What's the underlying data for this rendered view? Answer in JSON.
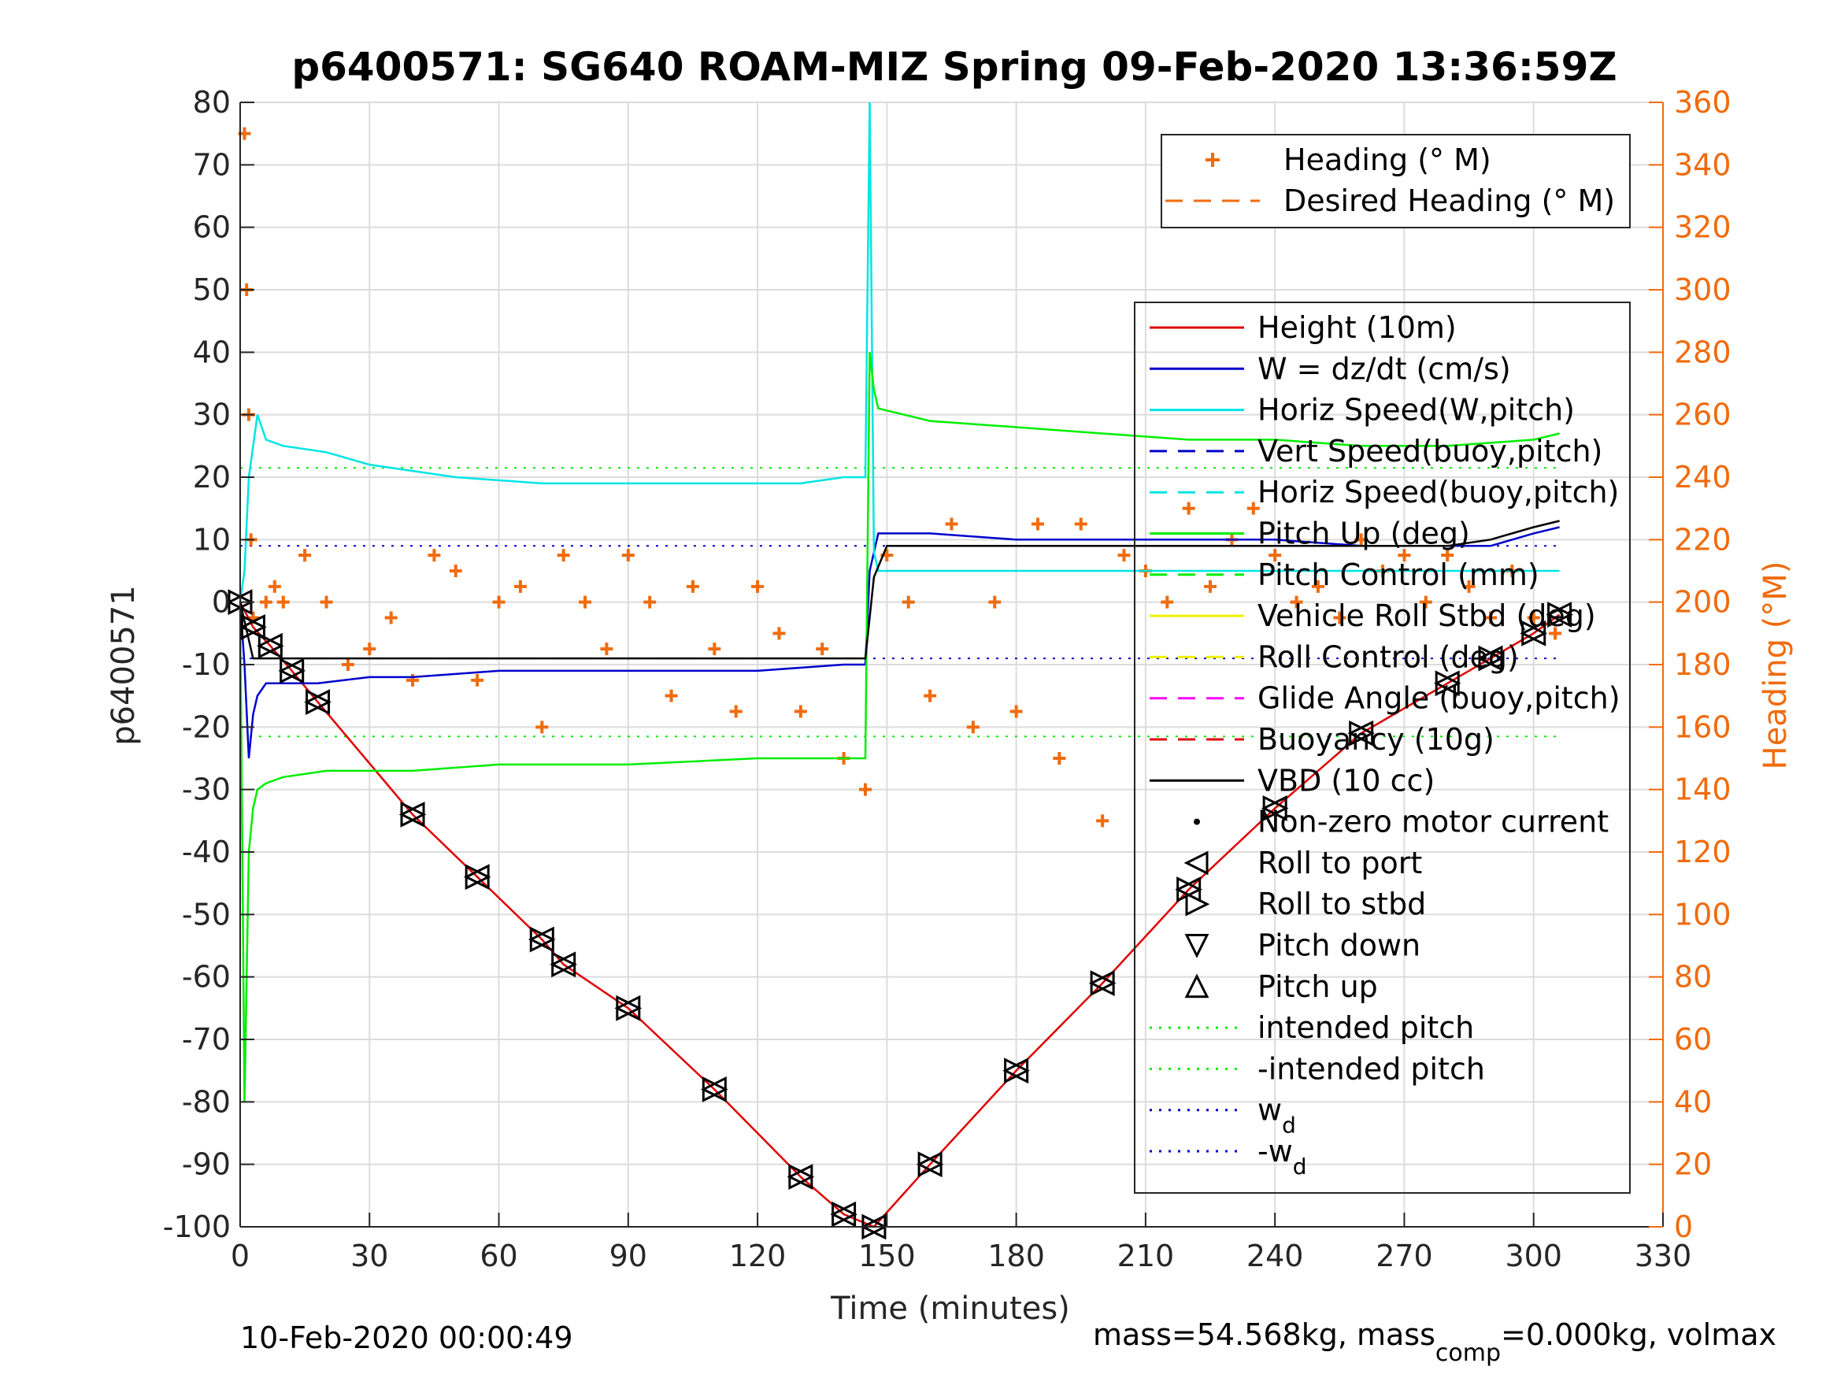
{
  "chart_data": {
    "type": "line",
    "title": "p6400571: SG640 ROAM-MIZ Spring 09-Feb-2020 13:36:59Z",
    "xlabel": "Time (minutes)",
    "ylabel": "p6400571",
    "ylabel_right": "Heading (°M)",
    "xlim": [
      0,
      330
    ],
    "ylim": [
      -100,
      80
    ],
    "ylim_right": [
      0,
      360
    ],
    "xticks": [
      0,
      30,
      60,
      90,
      120,
      150,
      180,
      210,
      240,
      270,
      300,
      330
    ],
    "yticks": [
      -100,
      -90,
      -80,
      -70,
      -60,
      -50,
      -40,
      -30,
      -20,
      -10,
      0,
      10,
      20,
      30,
      40,
      50,
      60,
      70,
      80
    ],
    "yticks_right": [
      0,
      20,
      40,
      60,
      80,
      100,
      120,
      140,
      160,
      180,
      200,
      220,
      240,
      260,
      280,
      300,
      320,
      340,
      360
    ],
    "grid": true,
    "legend_top": {
      "placement": "top-right",
      "entries": [
        {
          "label": "Heading (° M)",
          "color": "#f06b0d",
          "style": "plus"
        },
        {
          "label": "Desired Heading (° M)",
          "color": "#f06b0d",
          "style": "dashed"
        }
      ]
    },
    "legend_main": {
      "placement": "right",
      "entries": [
        {
          "label": "Height (10m)",
          "color": "#e00000",
          "style": "solid"
        },
        {
          "label": "W = dz/dt (cm/s)",
          "color": "#0000cc",
          "style": "solid"
        },
        {
          "label": "Horiz Speed(W,pitch)",
          "color": "#00e5e5",
          "style": "solid"
        },
        {
          "label": "Vert Speed(buoy,pitch)",
          "color": "#0000cc",
          "style": "dashed"
        },
        {
          "label": "Horiz Speed(buoy,pitch)",
          "color": "#00e5e5",
          "style": "dashed"
        },
        {
          "label": "Pitch Up (deg)",
          "color": "#00ee00",
          "style": "solid"
        },
        {
          "label": "Pitch Control (mm)",
          "color": "#00ee00",
          "style": "dashed"
        },
        {
          "label": "Vehicle Roll Stbd (deg)",
          "color": "#f0f000",
          "style": "solid"
        },
        {
          "label": "Roll Control (deg)",
          "color": "#f0f000",
          "style": "dashed"
        },
        {
          "label": "Glide Angle (buoy,pitch)",
          "color": "#ff00ff",
          "style": "dashed"
        },
        {
          "label": "Buoyancy (10g)",
          "color": "#e00000",
          "style": "dashed"
        },
        {
          "label": "VBD (10 cc)",
          "color": "#000000",
          "style": "solid"
        },
        {
          "label": "Non-zero motor current",
          "color": "#000000",
          "style": "dot"
        },
        {
          "label": "Roll to port",
          "color": "#000000",
          "style": "tri-left"
        },
        {
          "label": "Roll to stbd",
          "color": "#000000",
          "style": "tri-right"
        },
        {
          "label": "Pitch down",
          "color": "#000000",
          "style": "tri-down"
        },
        {
          "label": "Pitch up",
          "color": "#000000",
          "style": "tri-up"
        },
        {
          "label": "intended pitch",
          "color": "#00ee00",
          "style": "dotted"
        },
        {
          "label": "-intended pitch",
          "color": "#00ee00",
          "style": "dotted"
        },
        {
          "label": "w",
          "sub": "d",
          "color": "#0000cc",
          "style": "dotted"
        },
        {
          "label": "-w",
          "sub": "d",
          "color": "#0000cc",
          "style": "dotted"
        }
      ]
    },
    "series": [
      {
        "name": "Height (10m)",
        "color": "#e00000",
        "x": [
          0,
          3,
          7,
          12,
          18,
          40,
          55,
          70,
          75,
          90,
          110,
          130,
          140,
          147,
          160,
          180,
          200,
          220,
          240,
          260,
          280,
          290,
          300,
          306
        ],
        "y": [
          0,
          -4,
          -7,
          -11,
          -16,
          -34,
          -44,
          -54,
          -58,
          -65,
          -78,
          -92,
          -98,
          -100,
          -90,
          -75,
          -61,
          -46,
          -33,
          -21,
          -13,
          -9,
          -5,
          -2
        ]
      },
      {
        "name": "W = dz/dt (cm/s)",
        "color": "#0000cc",
        "x": [
          0,
          1,
          2,
          3,
          4,
          6,
          8,
          12,
          18,
          30,
          40,
          60,
          90,
          120,
          140,
          145,
          146,
          148,
          160,
          180,
          200,
          220,
          240,
          260,
          280,
          290,
          300,
          306
        ],
        "y": [
          0,
          -10,
          -25,
          -18,
          -15,
          -13,
          -13,
          -13,
          -13,
          -12,
          -12,
          -11,
          -11,
          -11,
          -10,
          -10,
          5,
          11,
          11,
          10,
          10,
          10,
          10,
          9,
          9,
          9,
          11,
          12
        ]
      },
      {
        "name": "Horiz Speed(W,pitch)",
        "color": "#00e5e5",
        "x": [
          0,
          1,
          2,
          4,
          6,
          10,
          20,
          30,
          50,
          70,
          90,
          110,
          130,
          140,
          145,
          146,
          147,
          148,
          160,
          200,
          240,
          280,
          306
        ],
        "y": [
          0,
          5,
          20,
          30,
          26,
          25,
          24,
          22,
          20,
          19,
          19,
          19,
          19,
          20,
          20,
          80,
          8,
          5,
          5,
          5,
          5,
          5,
          5
        ]
      },
      {
        "name": "Pitch Up (deg)",
        "color": "#00ee00",
        "x": [
          0,
          1,
          2,
          3,
          4,
          6,
          10,
          20,
          40,
          60,
          90,
          120,
          140,
          145,
          146,
          147,
          148,
          160,
          180,
          200,
          220,
          240,
          260,
          280,
          300,
          306
        ],
        "y": [
          0,
          -80,
          -40,
          -33,
          -30,
          -29,
          -28,
          -27,
          -27,
          -26,
          -26,
          -25,
          -25,
          -25,
          40,
          34,
          31,
          29,
          28,
          27,
          26,
          26,
          25,
          25,
          26,
          27
        ]
      },
      {
        "name": "VBD (10 cc)",
        "color": "#000000",
        "x": [
          0,
          3,
          10,
          30,
          60,
          100,
          140,
          145,
          147,
          150,
          180,
          220,
          260,
          280,
          290,
          300,
          306
        ],
        "y": [
          0,
          -9,
          -9,
          -9,
          -9,
          -9,
          -9,
          -9,
          4,
          9,
          9,
          9,
          9,
          9,
          10,
          12,
          13
        ]
      }
    ],
    "reference_lines": [
      {
        "name": "intended pitch",
        "y": 21.5,
        "color": "#00ee00"
      },
      {
        "name": "-intended pitch",
        "y": -21.5,
        "color": "#00ee00"
      },
      {
        "name": "w_d",
        "y": 9,
        "color": "#0000cc"
      },
      {
        "name": "-w_d",
        "y": -9,
        "color": "#0000cc"
      }
    ],
    "heading": {
      "name": "Heading (° M)",
      "color": "#f06b0d",
      "x": [
        1,
        1.5,
        2,
        2.5,
        3,
        6,
        8,
        10,
        15,
        20,
        25,
        30,
        35,
        40,
        45,
        50,
        55,
        60,
        65,
        70,
        75,
        80,
        85,
        90,
        95,
        100,
        105,
        110,
        115,
        120,
        125,
        130,
        135,
        140,
        145,
        150,
        155,
        160,
        165,
        170,
        175,
        180,
        185,
        190,
        195,
        200,
        205,
        210,
        215,
        220,
        225,
        230,
        235,
        240,
        245,
        250,
        255,
        260,
        265,
        270,
        275,
        280,
        285,
        290,
        295,
        300,
        305
      ],
      "y": [
        350,
        300,
        260,
        220,
        195,
        200,
        205,
        200,
        215,
        200,
        180,
        185,
        195,
        175,
        215,
        210,
        175,
        200,
        205,
        160,
        215,
        200,
        185,
        215,
        200,
        170,
        205,
        185,
        165,
        205,
        190,
        165,
        185,
        150,
        140,
        215,
        200,
        170,
        225,
        160,
        200,
        165,
        225,
        150,
        225,
        130,
        215,
        210,
        200,
        230,
        205,
        220,
        230,
        215,
        200,
        205,
        195,
        220,
        210,
        215,
        200,
        215,
        205,
        195,
        210,
        195,
        190
      ]
    }
  },
  "footer": {
    "timestamp": "10-Feb-2020 00:00:49",
    "mass_pre": "mass=54.568kg, mass",
    "mass_sub": "comp",
    "mass_post": "=0.000kg, volmax"
  }
}
